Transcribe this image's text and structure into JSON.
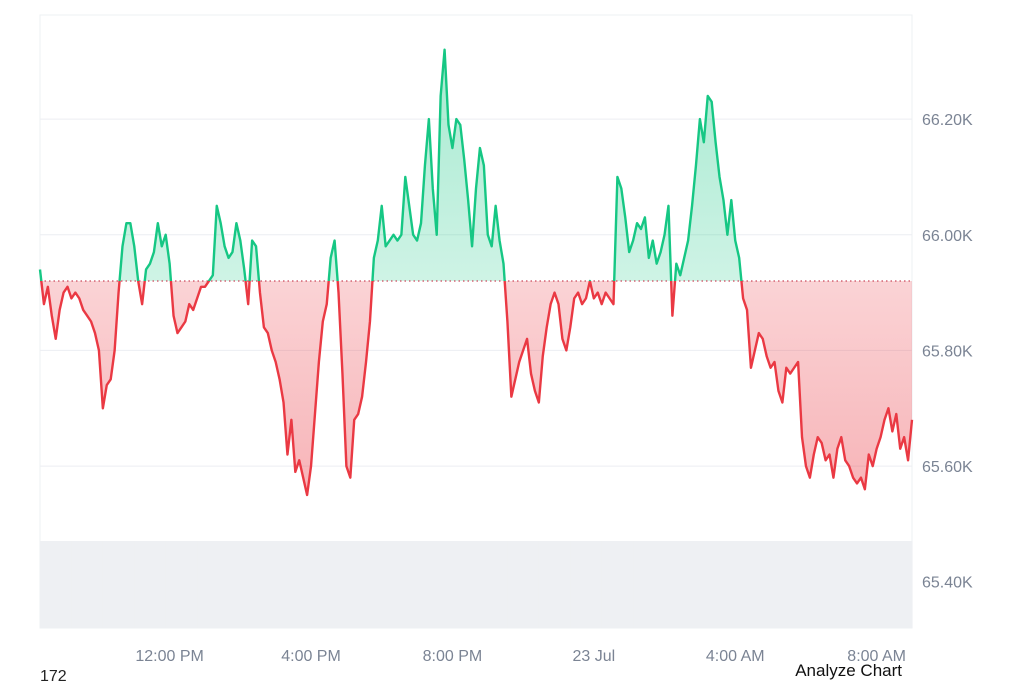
{
  "chart_data": {
    "type": "area",
    "baseline_value": 65920,
    "ylim": [
      65320,
      66380
    ],
    "y_ticks": [
      {
        "value": 65400,
        "label": "65.40K"
      },
      {
        "value": 65600,
        "label": "65.60K"
      },
      {
        "value": 65800,
        "label": "65.80K"
      },
      {
        "value": 66000,
        "label": "66.00K"
      },
      {
        "value": 66200,
        "label": "66.20K"
      }
    ],
    "x_ticks": [
      {
        "index": 33,
        "label": "12:00 PM"
      },
      {
        "index": 69,
        "label": "4:00 PM"
      },
      {
        "index": 105,
        "label": "8:00 PM"
      },
      {
        "index": 141,
        "label": "23 Jul"
      },
      {
        "index": 177,
        "label": "4:00 AM"
      },
      {
        "index": 213,
        "label": "8:00 AM"
      }
    ],
    "colors": {
      "up": "#16c784",
      "down": "#ea3943",
      "baseline": "#c9485b",
      "volume": "#eef0f3"
    },
    "series": [
      {
        "values": [
          65940,
          65880,
          65910,
          65860,
          65820,
          65870,
          65900,
          65910,
          65890,
          65900,
          65890,
          65870,
          65860,
          65850,
          65830,
          65800,
          65700,
          65740,
          65750,
          65800,
          65900,
          65980,
          66020,
          66020,
          65980,
          65920,
          65880,
          65940,
          65950,
          65970,
          66020,
          65980,
          66000,
          65950,
          65860,
          65830,
          65840,
          65850,
          65880,
          65870,
          65890,
          65910,
          65910,
          65920,
          65930,
          66050,
          66020,
          65980,
          65960,
          65970,
          66020,
          65990,
          65940,
          65880,
          65990,
          65980,
          65900,
          65840,
          65830,
          65800,
          65780,
          65750,
          65710,
          65620,
          65680,
          65590,
          65610,
          65580,
          65550,
          65600,
          65690,
          65780,
          65850,
          65880,
          65960,
          65990,
          65900,
          65760,
          65600,
          65580,
          65680,
          65690,
          65720,
          65780,
          65850,
          65960,
          65990,
          66050,
          65980,
          65990,
          66000,
          65990,
          66000,
          66100,
          66050,
          66000,
          65990,
          66020,
          66120,
          66200,
          66080,
          66000,
          66240,
          66320,
          66190,
          66150,
          66200,
          66190,
          66130,
          66060,
          65980,
          66080,
          66150,
          66120,
          66000,
          65980,
          66050,
          65990,
          65950,
          65850,
          65720,
          65750,
          65780,
          65800,
          65820,
          65760,
          65730,
          65710,
          65790,
          65840,
          65880,
          65900,
          65880,
          65820,
          65800,
          65840,
          65890,
          65900,
          65880,
          65890,
          65920,
          65890,
          65900,
          65880,
          65900,
          65890,
          65880,
          66100,
          66080,
          66030,
          65970,
          65990,
          66020,
          66010,
          66030,
          65960,
          65990,
          65950,
          65970,
          66000,
          66050,
          65860,
          65950,
          65930,
          65960,
          65990,
          66050,
          66120,
          66200,
          66160,
          66240,
          66230,
          66160,
          66100,
          66060,
          66000,
          66060,
          65990,
          65960,
          65890,
          65870,
          65770,
          65800,
          65830,
          65820,
          65790,
          65770,
          65780,
          65730,
          65710,
          65770,
          65760,
          65770,
          65780,
          65650,
          65600,
          65580,
          65620,
          65650,
          65640,
          65610,
          65620,
          65580,
          65630,
          65650,
          65610,
          65600,
          65580,
          65570,
          65580,
          65560,
          65620,
          65600,
          65630,
          65650,
          65680,
          65700,
          65660,
          65690,
          65630,
          65650,
          65610,
          65680
        ]
      }
    ],
    "volume": [
      1,
      1,
      1,
      1,
      1,
      1,
      1,
      1,
      1,
      1,
      1,
      1,
      1,
      1,
      1,
      1,
      1,
      1,
      1,
      1,
      1,
      1,
      1,
      1,
      1,
      1,
      1,
      1,
      1,
      1,
      1,
      1,
      1,
      1,
      1,
      1,
      1,
      1,
      1,
      1,
      1,
      1,
      1,
      1,
      1,
      1,
      1,
      1,
      1,
      1,
      1,
      1,
      1,
      1,
      1,
      1,
      1,
      1,
      1,
      1,
      1,
      1,
      1,
      1,
      1,
      1,
      1,
      1,
      1,
      1,
      1,
      1,
      1,
      1,
      1,
      1,
      1,
      1,
      1,
      1,
      1,
      1,
      1,
      1,
      1,
      1,
      1,
      1,
      1,
      1,
      1,
      1,
      1,
      1,
      1,
      1,
      1,
      1,
      1,
      1,
      1,
      1,
      1,
      1,
      1,
      1,
      1,
      1,
      1,
      1,
      1,
      1,
      1,
      1,
      1,
      1,
      1,
      1,
      1,
      1,
      1,
      1,
      1,
      1,
      1,
      1,
      1,
      1,
      1,
      1,
      1,
      1,
      1,
      1,
      1,
      1,
      1,
      1,
      1,
      1,
      1,
      1,
      1,
      1,
      1,
      1,
      1,
      1,
      1,
      1,
      1,
      1,
      1,
      1,
      1,
      1,
      1,
      1,
      1,
      1,
      1,
      1,
      1,
      1,
      1,
      1,
      1,
      1,
      1,
      1,
      1,
      1,
      1,
      1,
      1,
      1,
      1,
      1,
      1,
      1,
      1,
      1,
      1,
      1,
      1,
      1,
      1,
      1,
      1,
      1,
      1,
      1,
      1,
      1,
      1,
      1,
      1,
      1,
      1,
      1,
      1,
      1,
      1,
      1,
      1,
      1,
      1,
      1,
      1,
      1,
      1,
      1,
      1,
      1,
      1,
      1,
      1,
      1,
      1,
      1,
      1,
      1
    ]
  },
  "footer": {
    "left_text": "172",
    "right_text": "Analyze Chart"
  }
}
